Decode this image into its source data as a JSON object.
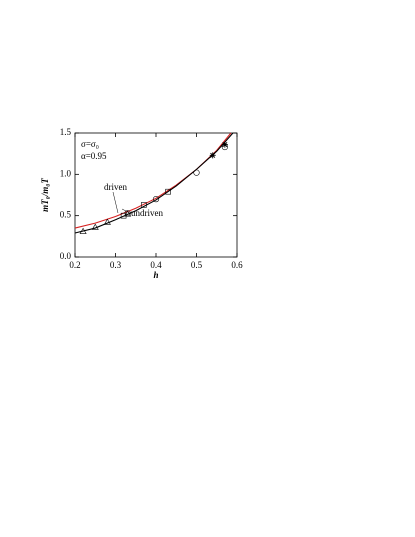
{
  "chart_data": {
    "type": "line",
    "xlabel": "h",
    "ylabel": "mT₀/m₀T",
    "annotations": [
      "σ=σ₀",
      "α=0.95",
      "driven",
      "undriven"
    ],
    "xlim": [
      0.2,
      0.6
    ],
    "xticks": [
      0.2,
      0.3,
      0.4,
      0.5,
      0.6
    ],
    "ylim": [
      0,
      1.5
    ],
    "yticks": [
      {
        "value": 0,
        "label": "0.0"
      },
      0.5,
      {
        "value": 1,
        "label": "1.0"
      },
      1.5
    ],
    "series": [
      {
        "name": "driven",
        "color": "#d62020",
        "marker": "none",
        "x": [
          0.2,
          0.25,
          0.3,
          0.35,
          0.4,
          0.45,
          0.5,
          0.55,
          0.585
        ],
        "values": [
          0.35,
          0.41,
          0.49,
          0.59,
          0.71,
          0.87,
          1.06,
          1.29,
          1.5
        ]
      },
      {
        "name": "undriven",
        "color": "#000000",
        "marker": "none",
        "x": [
          0.2,
          0.25,
          0.3,
          0.35,
          0.4,
          0.45,
          0.5,
          0.55,
          0.59
        ],
        "values": [
          0.29,
          0.35,
          0.45,
          0.56,
          0.69,
          0.86,
          1.06,
          1.28,
          1.5
        ]
      },
      {
        "color": "#000000",
        "marker": "triangle",
        "x": [
          0.22,
          0.25,
          0.28,
          0.33
        ],
        "values": [
          0.31,
          0.36,
          0.42,
          0.52
        ]
      },
      {
        "color": "#000000",
        "marker": "square",
        "x": [
          0.32,
          0.37,
          0.43
        ],
        "values": [
          0.5,
          0.63,
          0.79
        ]
      },
      {
        "color": "#000000",
        "marker": "circle",
        "x": [
          0.33,
          0.4,
          0.5,
          0.57
        ],
        "values": [
          0.53,
          0.7,
          1.02,
          1.33
        ]
      },
      {
        "color": "#000000",
        "marker": "star",
        "x": [
          0.54,
          0.57
        ],
        "values": [
          1.23,
          1.36
        ]
      }
    ]
  }
}
